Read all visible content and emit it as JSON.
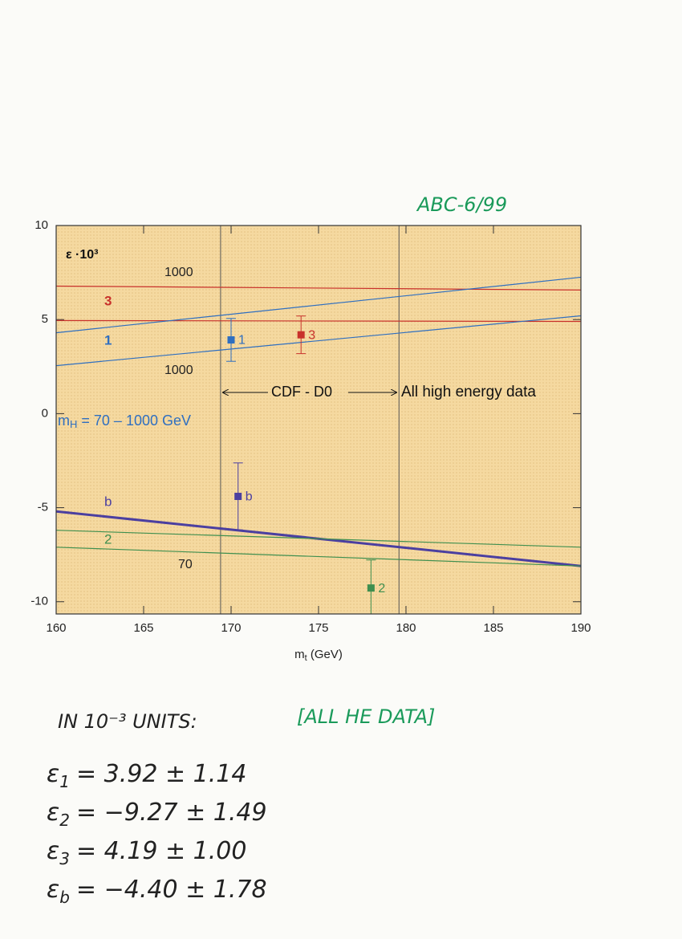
{
  "header": "ABC-6/99",
  "chart_data": {
    "type": "scatter",
    "ylabel": "ε ·10³",
    "xlabel": [
      "m",
      "t",
      " (GeV)"
    ],
    "xlim": [
      160,
      190
    ],
    "ylim": [
      -10.65,
      10
    ],
    "xticks": [
      160,
      165,
      170,
      175,
      180,
      185,
      190
    ],
    "yticks": [
      10,
      5,
      0,
      -5,
      -10
    ],
    "background": "#f5d9a0",
    "series": [
      {
        "name": "1",
        "color": "#2f6fc0",
        "x": [
          170
        ],
        "values": [
          3.92
        ],
        "errors": [
          1.14
        ]
      },
      {
        "name": "3",
        "color": "#c8312b",
        "x": [
          174
        ],
        "values": [
          4.19
        ],
        "errors": [
          1.0
        ]
      },
      {
        "name": "b",
        "color": "#4b3fa0",
        "x": [
          170.4
        ],
        "values": [
          -4.4
        ],
        "errors": [
          1.78
        ]
      },
      {
        "name": "2",
        "color": "#3f8f4f",
        "x": [
          178
        ],
        "values": [
          -9.27
        ],
        "errors": [
          1.49
        ]
      }
    ],
    "lines": [
      {
        "color": "#c8312b",
        "x": [
          160,
          190
        ],
        "values": [
          6.78,
          6.57
        ],
        "width": 1.2
      },
      {
        "color": "#c8312b",
        "x": [
          160,
          190
        ],
        "values": [
          4.95,
          4.9
        ],
        "width": 1.2
      },
      {
        "color": "#2f6fc0",
        "x": [
          160,
          190
        ],
        "values": [
          4.3,
          7.25
        ],
        "width": 1.2
      },
      {
        "color": "#2f6fc0",
        "x": [
          160,
          190
        ],
        "values": [
          2.55,
          5.2
        ],
        "width": 1.2
      },
      {
        "color": "#4b3fa0",
        "x": [
          160,
          190
        ],
        "values": [
          -5.2,
          -8.1
        ],
        "width": 3
      },
      {
        "color": "#3f8f4f",
        "x": [
          160,
          190
        ],
        "values": [
          -6.2,
          -7.1
        ],
        "width": 1.2
      },
      {
        "color": "#3f8f4f",
        "x": [
          160,
          190
        ],
        "values": [
          -7.1,
          -8.1
        ],
        "width": 1.2
      }
    ],
    "vlines": [
      169.4,
      179.6
    ],
    "annotations": [
      {
        "text": "1000",
        "color": "#222222"
      },
      {
        "text": "3",
        "color": "#c8312b"
      },
      {
        "text": "1",
        "color": "#2f6fc0"
      },
      {
        "text": "1000",
        "color": "#222222"
      },
      {
        "text": "CDF - D0",
        "color": "#111111"
      },
      {
        "text": "All high energy data",
        "color": "#111111"
      },
      {
        "text": "b",
        "color": "#4b3fa0"
      },
      {
        "text": "2",
        "color": "#3f8f4f"
      },
      {
        "text": "70",
        "color": "#222222"
      }
    ],
    "mh_label": {
      "parts": [
        "m",
        "H",
        " = 70 – 1000 GeV"
      ],
      "color": "#2f6fc0"
    }
  },
  "notes": {
    "units": "IN 10⁻³ UNITS:",
    "scope": "[ALL HE DATA]",
    "equations": [
      {
        "lhs": "ε",
        "sub": "1",
        "rhs": "= 3.92 ± 1.14"
      },
      {
        "lhs": "ε",
        "sub": "2",
        "rhs": "= −9.27 ± 1.49"
      },
      {
        "lhs": "ε",
        "sub": "3",
        "rhs": "= 4.19 ± 1.00"
      },
      {
        "lhs": "ε",
        "sub": "b",
        "rhs": "= −4.40 ± 1.78"
      }
    ]
  }
}
